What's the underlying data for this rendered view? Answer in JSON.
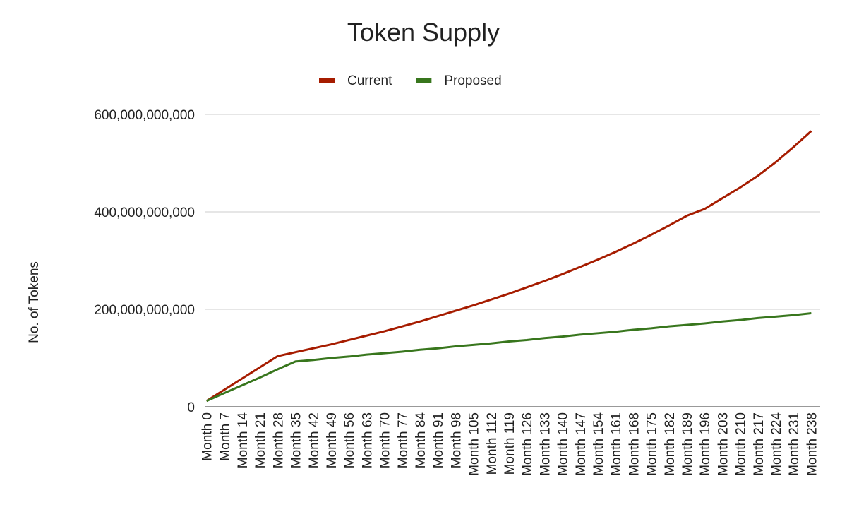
{
  "chart_data": {
    "type": "line",
    "title": "Token Supply",
    "y_label": "No. of Tokens",
    "categories": [
      "Month 0",
      "Month 7",
      "Month 14",
      "Month 21",
      "Month 28",
      "Month 35",
      "Month 42",
      "Month 49",
      "Month 56",
      "Month 63",
      "Month 70",
      "Month 77",
      "Month 84",
      "Month 91",
      "Month 98",
      "Month 105",
      "Month 112",
      "Month 119",
      "Month 126",
      "Month 133",
      "Month 140",
      "Month 147",
      "Month 154",
      "Month 161",
      "Month 168",
      "Month 175",
      "Month 182",
      "Month 189",
      "Month 196",
      "Month 203",
      "Month 210",
      "Month 217",
      "Month 224",
      "Month 231",
      "Month 238"
    ],
    "series": [
      {
        "name": "Current",
        "color": "#a61c00",
        "values": [
          12000000000,
          35000000000,
          58000000000,
          81000000000,
          104000000000,
          112000000000,
          120000000000,
          128000000000,
          137000000000,
          146000000000,
          155000000000,
          165000000000,
          175000000000,
          186000000000,
          197000000000,
          208000000000,
          220000000000,
          232000000000,
          245000000000,
          258000000000,
          272000000000,
          287000000000,
          302000000000,
          318000000000,
          335000000000,
          353000000000,
          372000000000,
          392000000000,
          406000000000,
          428000000000,
          450000000000,
          474000000000,
          502000000000,
          533000000000,
          566000000000
        ]
      },
      {
        "name": "Proposed",
        "color": "#38761d",
        "values": [
          12000000000,
          28000000000,
          44000000000,
          60000000000,
          77000000000,
          93000000000,
          96000000000,
          100000000000,
          103000000000,
          107000000000,
          110000000000,
          113000000000,
          117000000000,
          120000000000,
          124000000000,
          127000000000,
          130000000000,
          134000000000,
          137000000000,
          141000000000,
          144000000000,
          148000000000,
          151000000000,
          154000000000,
          158000000000,
          161000000000,
          165000000000,
          168000000000,
          171000000000,
          175000000000,
          178000000000,
          182000000000,
          185000000000,
          188000000000,
          192000000000
        ]
      }
    ],
    "ylim": [
      0,
      600000000000
    ],
    "yticks": [
      0,
      {
        "value": 200000000000,
        "label": "200,000,000,000"
      },
      {
        "value": 400000000000,
        "label": "400,000,000,000"
      },
      {
        "value": 600000000000,
        "label": "600,000,000,000"
      }
    ],
    "grid": true,
    "legend": "top"
  }
}
